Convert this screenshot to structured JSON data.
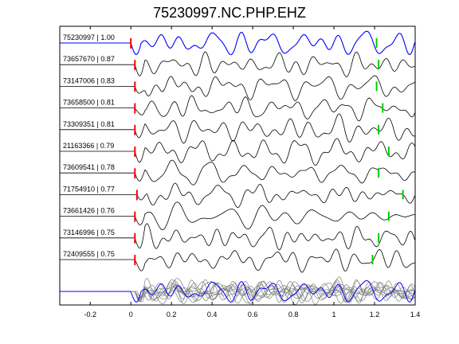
{
  "chart_data": {
    "type": "line",
    "title": "75230997.NC.PHP.EHZ",
    "xlim": [
      -0.35,
      1.4
    ],
    "x_ticks": [
      -0.2,
      0,
      0.2,
      0.4,
      0.6,
      0.8,
      1,
      1.2,
      1.4
    ],
    "x_tick_labels": [
      "-0.2",
      "0",
      "0.2",
      "0.4",
      "0.6",
      "0.8",
      "1",
      "1.2",
      "1.4"
    ],
    "grid": false,
    "colors": {
      "reference_trace": "#0000ff",
      "trace": "#000000",
      "stack_trace": "#808080",
      "p_pick": "#ff0000",
      "s_pick": "#00cc00"
    },
    "traces": [
      {
        "label": "75230997 | 1.00",
        "onset": 0.0,
        "s_pick": 1.21,
        "reference": true
      },
      {
        "label": "73657670 | 0.87",
        "onset": 0.02,
        "s_pick": 1.22
      },
      {
        "label": "73147006 | 0.83",
        "onset": 0.02,
        "s_pick": 1.21
      },
      {
        "label": "73658500 | 0.81",
        "onset": 0.02,
        "s_pick": 1.24
      },
      {
        "label": "73309351 | 0.81",
        "onset": 0.02,
        "s_pick": 1.22
      },
      {
        "label": "21163366 | 0.79",
        "onset": 0.02,
        "s_pick": 1.27
      },
      {
        "label": "73609541 | 0.78",
        "onset": 0.02,
        "s_pick": 1.22
      },
      {
        "label": "71754910 | 0.77",
        "onset": 0.03,
        "s_pick": 1.34
      },
      {
        "label": "73661426 | 0.76",
        "onset": 0.02,
        "s_pick": 1.27
      },
      {
        "label": "73146996 | 0.75",
        "onset": 0.02,
        "s_pick": 1.22
      },
      {
        "label": "72409555 | 0.75",
        "onset": 0.02,
        "s_pick": 1.19
      }
    ]
  }
}
